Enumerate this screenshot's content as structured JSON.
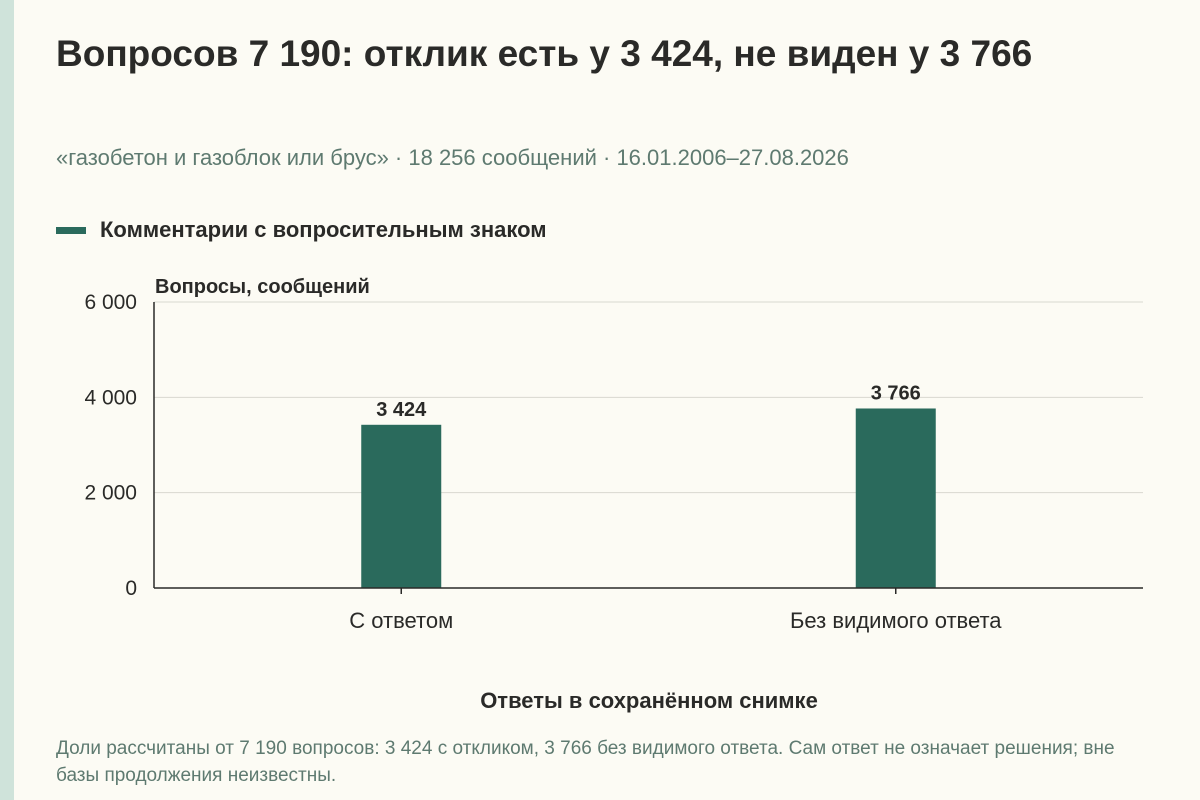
{
  "header": {
    "title": "Вопросов 7 190: отклик есть у 3 424, не виден у 3 766",
    "subtitle": "«газобетон и газоблок или брус» · 18 256 сообщений · 16.01.2006–27.08.2026"
  },
  "footnote": "Доли рассчитаны от 7 190 вопросов: 3 424 с откликом, 3 766 без видимого ответа. Сам ответ не означает решения; вне базы продолжения неизвестны.",
  "colors": {
    "bar": "#2a6a5c",
    "accent_stripe": "#cfe3da"
  },
  "chart_data": {
    "type": "bar",
    "categories": [
      "С ответом",
      "Без видимого ответа"
    ],
    "series": [
      {
        "name": "Комментарии с вопросительным знаком",
        "values": [
          3424,
          3766
        ]
      }
    ],
    "value_labels": [
      "3 424",
      "3 766"
    ],
    "ylabel": "Вопросы, сообщений",
    "xlabel": "Ответы в сохранённом снимке",
    "ylim": [
      0,
      6000
    ],
    "y_ticks": [
      0,
      2000,
      4000,
      6000
    ],
    "y_tick_labels": [
      "0",
      "2 000",
      "4 000",
      "6 000"
    ],
    "grid": true,
    "legend_position": "top-left"
  }
}
